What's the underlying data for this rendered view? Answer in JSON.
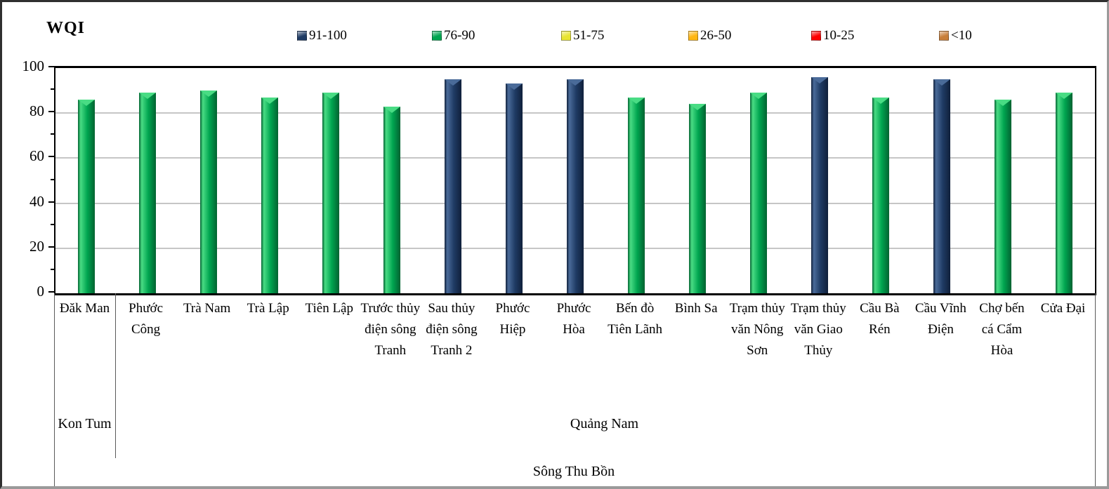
{
  "title": "WQI",
  "legend": [
    {
      "label": "91-100",
      "color": "#1F3B64"
    },
    {
      "label": "76-90",
      "color": "#00A550"
    },
    {
      "label": "51-75",
      "color": "#E8E431"
    },
    {
      "label": "26-50",
      "color": "#FFB612"
    },
    {
      "label": "10-25",
      "color": "#FE0000"
    },
    {
      "label": "<10",
      "color": "#C87E39"
    }
  ],
  "bar_colors": {
    "navy": {
      "base": "#1F3B64",
      "light": "#4A6B99",
      "dark": "#10203B"
    },
    "green": {
      "base": "#00A550",
      "light": "#49DC84",
      "dark": "#026331"
    }
  },
  "chart_data": {
    "type": "bar",
    "title": "WQI",
    "ylabel": "WQI",
    "xlabel": "",
    "ylim": [
      0,
      100
    ],
    "yticks": [
      0,
      20,
      40,
      60,
      80,
      100
    ],
    "grid": "horizontal major",
    "legend_position": "top",
    "legend_classes": [
      "91-100",
      "76-90",
      "51-75",
      "26-50",
      "10-25",
      "<10"
    ],
    "categories": [
      "Đăk Man",
      "Phước Công",
      "Trà Nam",
      "Trà Lập",
      "Tiên Lập",
      "Trước thủy điện sông Tranh",
      "Sau thủy điện sông Tranh 2",
      "Phước Hiệp",
      "Phước Hòa",
      "Bến đò Tiên Lãnh",
      "Bình Sa",
      "Trạm thủy văn Nông Sơn",
      "Trạm thủy văn Giao Thủy",
      "Cầu Bà Rén",
      "Cầu Vĩnh Điện",
      "Chợ bến cá Cẩm Hòa",
      "Cửa Đại"
    ],
    "values": [
      86,
      89,
      90,
      87,
      89,
      83,
      95,
      93,
      95,
      87,
      84,
      89,
      96,
      87,
      95,
      86,
      89
    ],
    "value_classes": [
      "76-90",
      "76-90",
      "76-90",
      "76-90",
      "76-90",
      "76-90",
      "91-100",
      "91-100",
      "91-100",
      "76-90",
      "76-90",
      "76-90",
      "91-100",
      "76-90",
      "91-100",
      "76-90",
      "76-90"
    ],
    "province_groups": [
      {
        "label": "Kon Tum",
        "span": 1
      },
      {
        "label": "Quảng Nam",
        "span": 16
      }
    ],
    "river_group": "Sông Thu Bồn"
  }
}
